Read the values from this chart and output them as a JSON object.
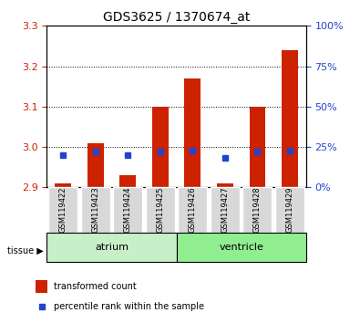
{
  "title": "GDS3625 / 1370674_at",
  "samples": [
    "GSM119422",
    "GSM119423",
    "GSM119424",
    "GSM119425",
    "GSM119426",
    "GSM119427",
    "GSM119428",
    "GSM119429"
  ],
  "red_values": [
    2.91,
    3.01,
    2.93,
    3.1,
    3.17,
    2.91,
    3.1,
    3.24
  ],
  "blue_values": [
    20,
    22,
    20,
    22,
    23,
    18,
    22,
    23
  ],
  "ylim_left": [
    2.9,
    3.3
  ],
  "ylim_right": [
    0,
    100
  ],
  "yticks_left": [
    2.9,
    3.0,
    3.1,
    3.2,
    3.3
  ],
  "yticks_right": [
    0,
    25,
    50,
    75,
    100
  ],
  "ytick_labels_right": [
    "0%",
    "25%",
    "50%",
    "75%",
    "100%"
  ],
  "groups": [
    {
      "label": "atrium",
      "start": 0,
      "end": 4,
      "color": "#c8f0c8"
    },
    {
      "label": "ventricle",
      "start": 4,
      "end": 8,
      "color": "#90ee90"
    }
  ],
  "tissue_label": "tissue",
  "red_color": "#cc2200",
  "blue_color": "#2244cc",
  "bar_baseline": 2.9,
  "bar_width": 0.5,
  "bg_plot": "#ffffff",
  "bg_xticklabels": "#d8d8d8",
  "grid_color": "#000000",
  "legend_red": "transformed count",
  "legend_blue": "percentile rank within the sample"
}
